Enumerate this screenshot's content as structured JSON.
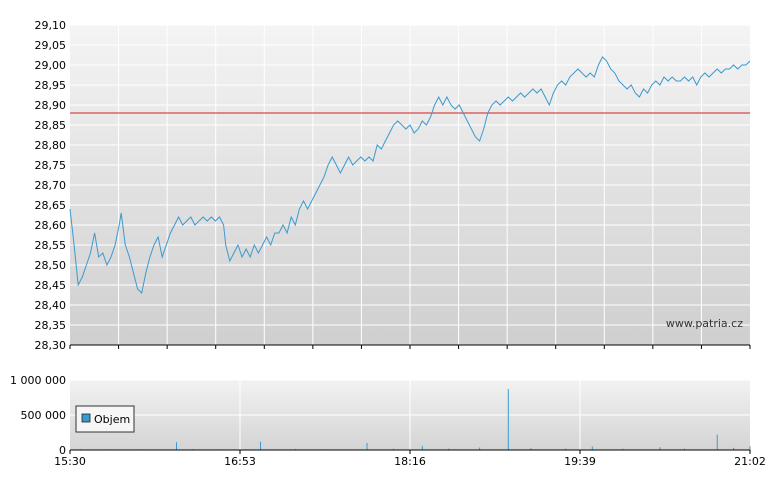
{
  "chart_data": [
    {
      "type": "line",
      "title": "",
      "xlabel": "",
      "ylabel": "",
      "ylim": [
        28.3,
        29.1
      ],
      "yticks": [
        "29,10",
        "29,05",
        "29,00",
        "28,95",
        "28,90",
        "28,85",
        "28,80",
        "28,75",
        "28,70",
        "28,65",
        "28,60",
        "28,55",
        "28,50",
        "28,45",
        "28,40",
        "28,35",
        "28,30"
      ],
      "reference_line": {
        "value": 28.88,
        "color": "#d02020"
      },
      "series_color": "#3c9ad0",
      "grid": true,
      "watermark": "www.patria.cz",
      "x_range_minutes": [
        0,
        332
      ],
      "points": [
        [
          0,
          28.64
        ],
        [
          2,
          28.55
        ],
        [
          4,
          28.45
        ],
        [
          6,
          28.47
        ],
        [
          8,
          28.5
        ],
        [
          10,
          28.53
        ],
        [
          12,
          28.58
        ],
        [
          14,
          28.52
        ],
        [
          16,
          28.53
        ],
        [
          18,
          28.5
        ],
        [
          20,
          28.52
        ],
        [
          22,
          28.55
        ],
        [
          24,
          28.6
        ],
        [
          25,
          28.63
        ],
        [
          27,
          28.55
        ],
        [
          29,
          28.52
        ],
        [
          31,
          28.48
        ],
        [
          33,
          28.44
        ],
        [
          35,
          28.43
        ],
        [
          37,
          28.48
        ],
        [
          39,
          28.52
        ],
        [
          41,
          28.55
        ],
        [
          43,
          28.57
        ],
        [
          45,
          28.52
        ],
        [
          47,
          28.55
        ],
        [
          49,
          28.58
        ],
        [
          51,
          28.6
        ],
        [
          53,
          28.62
        ],
        [
          55,
          28.6
        ],
        [
          57,
          28.61
        ],
        [
          59,
          28.62
        ],
        [
          61,
          28.6
        ],
        [
          63,
          28.61
        ],
        [
          65,
          28.62
        ],
        [
          67,
          28.61
        ],
        [
          69,
          28.62
        ],
        [
          71,
          28.61
        ],
        [
          73,
          28.62
        ],
        [
          75,
          28.6
        ],
        [
          76,
          28.55
        ],
        [
          78,
          28.51
        ],
        [
          80,
          28.53
        ],
        [
          82,
          28.55
        ],
        [
          84,
          28.52
        ],
        [
          86,
          28.54
        ],
        [
          88,
          28.52
        ],
        [
          90,
          28.55
        ],
        [
          92,
          28.53
        ],
        [
          94,
          28.55
        ],
        [
          96,
          28.57
        ],
        [
          98,
          28.55
        ],
        [
          100,
          28.58
        ],
        [
          102,
          28.58
        ],
        [
          104,
          28.6
        ],
        [
          106,
          28.58
        ],
        [
          108,
          28.62
        ],
        [
          110,
          28.6
        ],
        [
          112,
          28.64
        ],
        [
          114,
          28.66
        ],
        [
          116,
          28.64
        ],
        [
          118,
          28.66
        ],
        [
          120,
          28.68
        ],
        [
          122,
          28.7
        ],
        [
          124,
          28.72
        ],
        [
          126,
          28.75
        ],
        [
          128,
          28.77
        ],
        [
          130,
          28.75
        ],
        [
          132,
          28.73
        ],
        [
          134,
          28.75
        ],
        [
          136,
          28.77
        ],
        [
          138,
          28.75
        ],
        [
          140,
          28.76
        ],
        [
          142,
          28.77
        ],
        [
          144,
          28.76
        ],
        [
          146,
          28.77
        ],
        [
          148,
          28.76
        ],
        [
          150,
          28.8
        ],
        [
          152,
          28.79
        ],
        [
          154,
          28.81
        ],
        [
          156,
          28.83
        ],
        [
          158,
          28.85
        ],
        [
          160,
          28.86
        ],
        [
          162,
          28.85
        ],
        [
          164,
          28.84
        ],
        [
          166,
          28.85
        ],
        [
          168,
          28.83
        ],
        [
          170,
          28.84
        ],
        [
          172,
          28.86
        ],
        [
          174,
          28.85
        ],
        [
          176,
          28.87
        ],
        [
          178,
          28.9
        ],
        [
          180,
          28.92
        ],
        [
          182,
          28.9
        ],
        [
          184,
          28.92
        ],
        [
          186,
          28.9
        ],
        [
          188,
          28.89
        ],
        [
          190,
          28.9
        ],
        [
          192,
          28.88
        ],
        [
          194,
          28.86
        ],
        [
          196,
          28.84
        ],
        [
          198,
          28.82
        ],
        [
          200,
          28.81
        ],
        [
          202,
          28.84
        ],
        [
          204,
          28.88
        ],
        [
          206,
          28.9
        ],
        [
          208,
          28.91
        ],
        [
          210,
          28.9
        ],
        [
          212,
          28.91
        ],
        [
          214,
          28.92
        ],
        [
          216,
          28.91
        ],
        [
          218,
          28.92
        ],
        [
          220,
          28.93
        ],
        [
          222,
          28.92
        ],
        [
          224,
          28.93
        ],
        [
          226,
          28.94
        ],
        [
          228,
          28.93
        ],
        [
          230,
          28.94
        ],
        [
          232,
          28.92
        ],
        [
          234,
          28.9
        ],
        [
          236,
          28.93
        ],
        [
          238,
          28.95
        ],
        [
          240,
          28.96
        ],
        [
          242,
          28.95
        ],
        [
          244,
          28.97
        ],
        [
          246,
          28.98
        ],
        [
          248,
          28.99
        ],
        [
          250,
          28.98
        ],
        [
          252,
          28.97
        ],
        [
          254,
          28.98
        ],
        [
          256,
          28.97
        ],
        [
          258,
          29.0
        ],
        [
          260,
          29.02
        ],
        [
          262,
          29.01
        ],
        [
          264,
          28.99
        ],
        [
          266,
          28.98
        ],
        [
          268,
          28.96
        ],
        [
          270,
          28.95
        ],
        [
          272,
          28.94
        ],
        [
          274,
          28.95
        ],
        [
          276,
          28.93
        ],
        [
          278,
          28.92
        ],
        [
          280,
          28.94
        ],
        [
          282,
          28.93
        ],
        [
          284,
          28.95
        ],
        [
          286,
          28.96
        ],
        [
          288,
          28.95
        ],
        [
          290,
          28.97
        ],
        [
          292,
          28.96
        ],
        [
          294,
          28.97
        ],
        [
          296,
          28.96
        ],
        [
          298,
          28.96
        ],
        [
          300,
          28.97
        ],
        [
          302,
          28.96
        ],
        [
          304,
          28.97
        ],
        [
          306,
          28.95
        ],
        [
          308,
          28.97
        ],
        [
          310,
          28.98
        ],
        [
          312,
          28.97
        ],
        [
          314,
          28.98
        ],
        [
          316,
          28.99
        ],
        [
          318,
          28.98
        ],
        [
          320,
          28.99
        ],
        [
          322,
          28.99
        ],
        [
          324,
          29.0
        ],
        [
          326,
          28.99
        ],
        [
          328,
          29.0
        ],
        [
          330,
          29.0
        ],
        [
          332,
          29.01
        ]
      ]
    },
    {
      "type": "bar",
      "legend": {
        "label": "Objem",
        "color": "#3c9ad0",
        "position": "left"
      },
      "ylim": [
        0,
        1000000
      ],
      "yticks": [
        "1 000 000",
        "500 000",
        "0"
      ],
      "xticks": [
        "15:30",
        "16:53",
        "18:16",
        "19:39",
        "21:02"
      ],
      "grid": true,
      "series_color": "#3c9ad0",
      "bars": [
        [
          5,
          12000
        ],
        [
          20,
          9000
        ],
        [
          35,
          10000
        ],
        [
          52,
          110000
        ],
        [
          60,
          14000
        ],
        [
          75,
          9000
        ],
        [
          93,
          120000
        ],
        [
          110,
          15000
        ],
        [
          125,
          8000
        ],
        [
          145,
          100000
        ],
        [
          158,
          18000
        ],
        [
          172,
          60000
        ],
        [
          185,
          20000
        ],
        [
          200,
          35000
        ],
        [
          214,
          870000
        ],
        [
          225,
          25000
        ],
        [
          242,
          20000
        ],
        [
          255,
          50000
        ],
        [
          270,
          18000
        ],
        [
          288,
          40000
        ],
        [
          300,
          20000
        ],
        [
          316,
          220000
        ],
        [
          324,
          30000
        ],
        [
          332,
          55000
        ]
      ]
    }
  ]
}
